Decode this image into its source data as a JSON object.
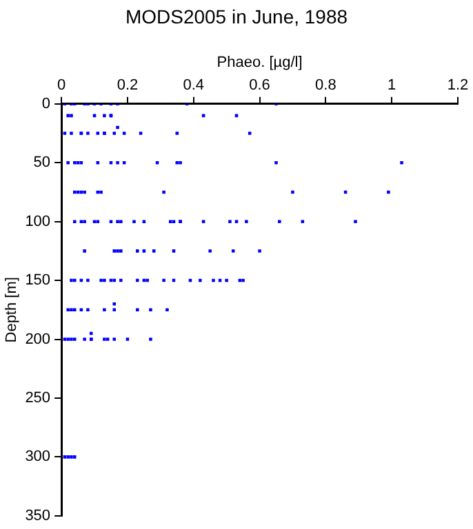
{
  "chart_data": {
    "type": "scatter",
    "title": "MODS2005 in June, 1988",
    "xlabel": "Phaeo. [µg/l]",
    "ylabel": "Depth [m]",
    "xlim": [
      0,
      1.2
    ],
    "xticks": [
      0,
      0.2,
      0.4,
      0.6,
      0.8,
      1,
      1.2
    ],
    "ylim": [
      350,
      0
    ],
    "yticks": [
      0,
      50,
      100,
      150,
      200,
      250,
      300,
      350
    ],
    "grid": false,
    "legend": false,
    "marker": "square",
    "series": [
      {
        "color": "#0000ff",
        "x": [
          0.01,
          0.03,
          0.04,
          0.07,
          0.08,
          0.1,
          0.12,
          0.15,
          0.17,
          0.38,
          0.65,
          0.02,
          0.03,
          0.1,
          0.13,
          0.15,
          0.15,
          0.43,
          0.53,
          0.17,
          0.01,
          0.03,
          0.06,
          0.06,
          0.08,
          0.11,
          0.13,
          0.13,
          0.16,
          0.19,
          0.24,
          0.35,
          0.57,
          0.02,
          0.04,
          0.05,
          0.06,
          0.11,
          0.15,
          0.17,
          0.19,
          0.29,
          0.35,
          0.36,
          0.65,
          1.03,
          0.04,
          0.05,
          0.06,
          0.07,
          0.11,
          0.12,
          0.31,
          0.7,
          0.86,
          0.99,
          0.04,
          0.06,
          0.07,
          0.1,
          0.11,
          0.15,
          0.17,
          0.18,
          0.22,
          0.25,
          0.33,
          0.34,
          0.36,
          0.36,
          0.43,
          0.51,
          0.53,
          0.56,
          0.66,
          0.73,
          0.89,
          0.07,
          0.16,
          0.17,
          0.18,
          0.23,
          0.25,
          0.28,
          0.34,
          0.45,
          0.52,
          0.6,
          0.03,
          0.04,
          0.06,
          0.08,
          0.12,
          0.13,
          0.15,
          0.16,
          0.18,
          0.23,
          0.25,
          0.26,
          0.31,
          0.34,
          0.39,
          0.42,
          0.46,
          0.48,
          0.5,
          0.54,
          0.55,
          0.16,
          0.02,
          0.03,
          0.04,
          0.06,
          0.08,
          0.13,
          0.16,
          0.23,
          0.27,
          0.32,
          0.09,
          0.01,
          0.02,
          0.03,
          0.04,
          0.07,
          0.09,
          0.09,
          0.13,
          0.14,
          0.16,
          0.2,
          0.27,
          0.01,
          0.02,
          0.03,
          0.04
        ],
        "values": [
          0,
          0,
          0,
          0,
          0,
          0,
          0,
          0,
          0,
          0,
          0,
          10,
          10,
          10,
          10,
          10,
          10,
          10,
          10,
          20,
          25,
          25,
          25,
          25,
          25,
          25,
          25,
          25,
          25,
          25,
          25,
          25,
          25,
          50,
          50,
          50,
          50,
          50,
          50,
          50,
          50,
          50,
          50,
          50,
          50,
          50,
          75,
          75,
          75,
          75,
          75,
          75,
          75,
          75,
          75,
          75,
          100,
          100,
          100,
          100,
          100,
          100,
          100,
          100,
          100,
          100,
          100,
          100,
          100,
          100,
          100,
          100,
          100,
          100,
          100,
          100,
          100,
          125,
          125,
          125,
          125,
          125,
          125,
          125,
          125,
          125,
          125,
          125,
          150,
          150,
          150,
          150,
          150,
          150,
          150,
          150,
          150,
          150,
          150,
          150,
          150,
          150,
          150,
          150,
          150,
          150,
          150,
          150,
          150,
          170,
          175,
          175,
          175,
          175,
          175,
          175,
          175,
          175,
          175,
          175,
          195,
          200,
          200,
          200,
          200,
          200,
          200,
          200,
          200,
          200,
          200,
          200,
          200,
          300,
          300,
          300,
          300
        ]
      }
    ]
  }
}
